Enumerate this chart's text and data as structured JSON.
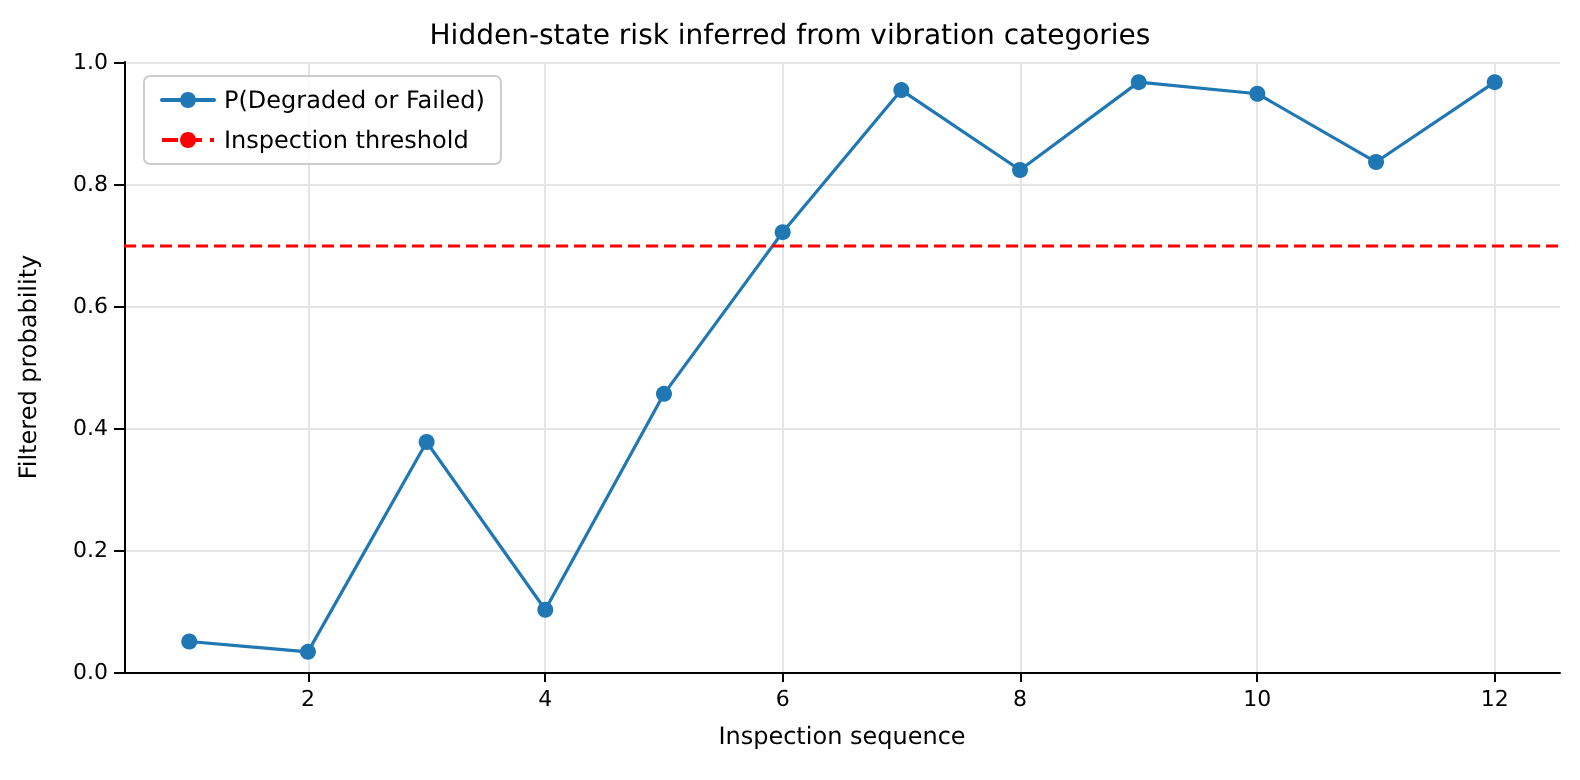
{
  "chart_data": {
    "type": "line",
    "title": "Hidden-state risk inferred from vibration categories",
    "xlabel": "Inspection sequence",
    "ylabel": "Filtered probability",
    "x": [
      1,
      2,
      3,
      4,
      5,
      6,
      7,
      8,
      9,
      10,
      11,
      12
    ],
    "series": [
      {
        "name": "P(Degraded or Failed)",
        "color": "#1f77b4",
        "values": [
          0.05,
          0.033,
          0.377,
          0.102,
          0.456,
          0.721,
          0.954,
          0.823,
          0.967,
          0.948,
          0.836,
          0.967
        ]
      }
    ],
    "ref_lines": [
      {
        "axis": "y",
        "value": 0.7,
        "label": "Inspection threshold",
        "color": "#ff0000",
        "line_style": "dashed"
      }
    ],
    "xlim": [
      0.45,
      12.55
    ],
    "xticks": [
      2,
      4,
      6,
      8,
      10,
      12
    ],
    "ylim": [
      0,
      1
    ],
    "yticks": [
      {
        "value": 0,
        "label": "0.0"
      },
      {
        "value": 0.2,
        "label": "0.2"
      },
      {
        "value": 0.4,
        "label": "0.4"
      },
      {
        "value": 0.6,
        "label": "0.6"
      },
      {
        "value": 0.8,
        "label": "0.8"
      },
      {
        "value": 1,
        "label": "1.0"
      }
    ],
    "grid": true,
    "legend": "top left",
    "marker": "circle",
    "line_style": "solid"
  }
}
